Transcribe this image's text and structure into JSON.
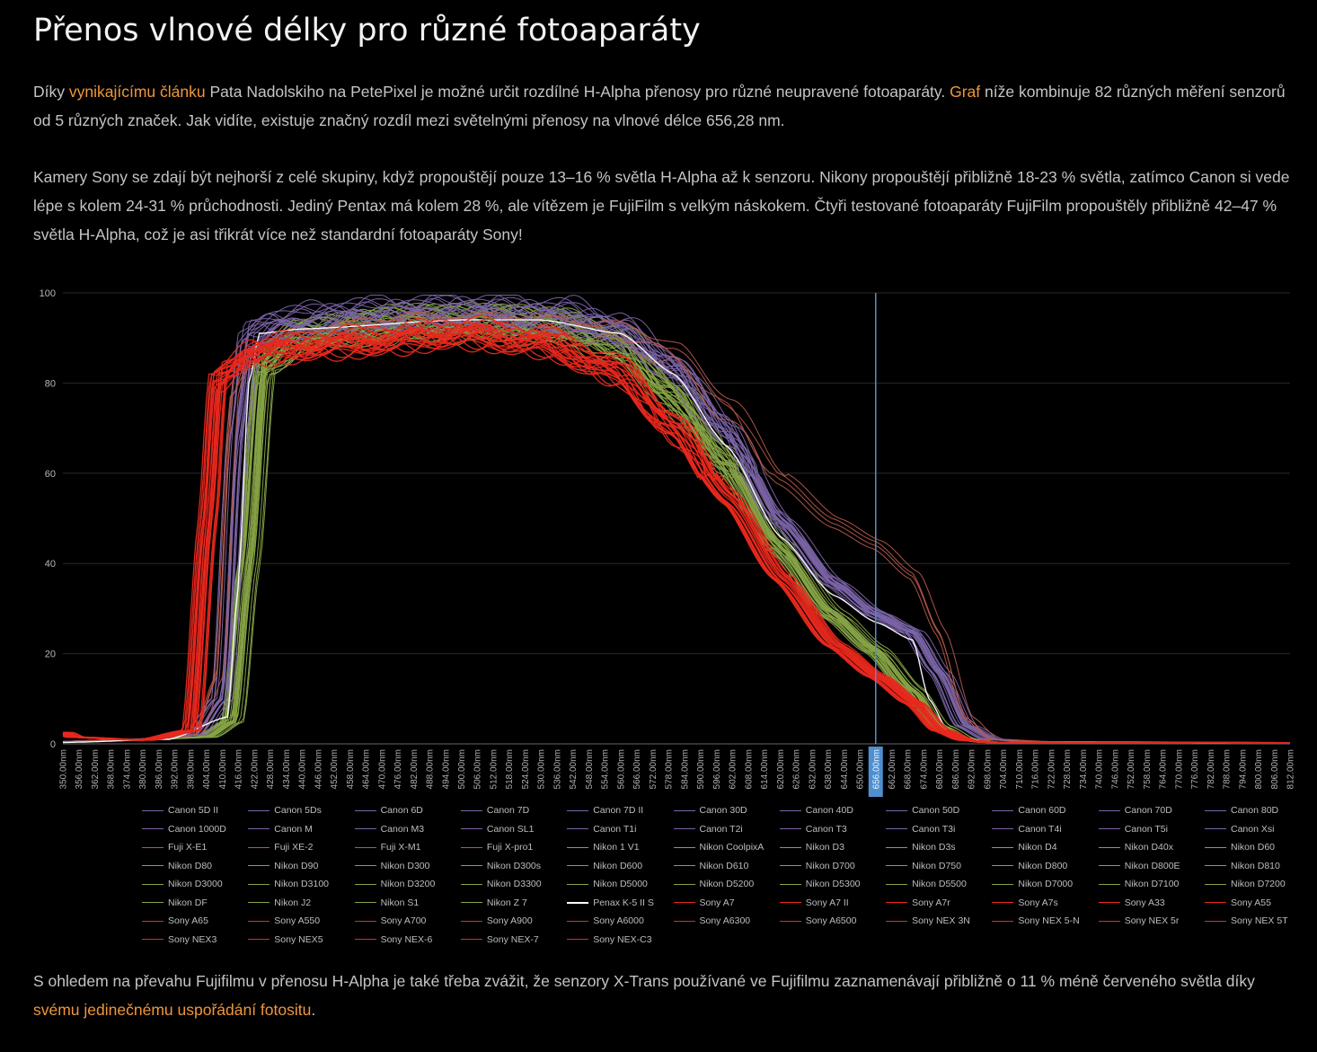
{
  "page": {
    "title": "Přenos vlnové délky pro různé fotoaparáty",
    "p1": {
      "t1": "Díky ",
      "link1": "vynikajícímu článku",
      "t2": " Pata Nadolskiho na PetePixel je možné určit rozdílné H-Alpha přenosy pro různé neupravené fotoaparáty. ",
      "link2": "Graf",
      "t3": " níže kombinuje 82 různých měření senzorů od 5 různých značek. Jak vidíte, existuje značný rozdíl mezi světelnými přenosy na vlnové délce 656,28 nm."
    },
    "p2": "Kamery Sony se zdají být nejhorší z celé skupiny, když propouštějí pouze 13–16 % světla H-Alpha až k senzoru. Nikony propouštějí přibližně 18-23 % světla, zatímco Canon si vede lépe s kolem 24-31 % průchodnosti. Jediný Pentax má kolem 28 %, ale vítězem je FujiFilm s velkým náskokem. Čtyři testované fotoaparáty FujiFilm propouštěly přibližně 42–47 % světla H-Alpha, což je asi třikrát více než standardní fotoaparáty Sony!",
    "p3": {
      "t1": "S ohledem na převahu Fujifilmu v přenosu H-Alpha je také třeba zvážit, že senzory X-Trans používané ve Fujifilmu zaznamenávají přibližně o 11 % méně červeného světla díky ",
      "link": "svému jedinečnému uspořádání fotositu",
      "t2": "."
    }
  },
  "colors": {
    "canon": "#7b64a8",
    "fuji": "#b5574a",
    "nikon": "#86a346",
    "pentax": "#ffffff",
    "sony": "#e8281e",
    "highlight": "#4f8fcf",
    "grid": "#2a2a2a",
    "link": "#f0963a"
  },
  "chart_data": {
    "type": "line",
    "title": "",
    "xlabel": "",
    "ylabel": "",
    "ylim": [
      0,
      100
    ],
    "xlim": [
      350,
      812
    ],
    "yticks": [
      "0",
      "20",
      "40",
      "60",
      "80",
      "100"
    ],
    "x_tick_labels": [
      "350.00nm",
      "356.00nm",
      "362.00nm",
      "368.00nm",
      "374.00nm",
      "380.00nm",
      "386.00nm",
      "392.00nm",
      "398.00nm",
      "404.00nm",
      "410.00nm",
      "416.00nm",
      "422.00nm",
      "428.00nm",
      "434.00nm",
      "440.00nm",
      "446.00nm",
      "452.00nm",
      "458.00nm",
      "464.00nm",
      "470.00nm",
      "476.00nm",
      "482.00nm",
      "488.00nm",
      "494.00nm",
      "500.00nm",
      "506.00nm",
      "512.00nm",
      "518.00nm",
      "524.00nm",
      "530.00nm",
      "536.00nm",
      "542.00nm",
      "548.00nm",
      "554.00nm",
      "560.00nm",
      "566.00nm",
      "572.00nm",
      "578.00nm",
      "584.00nm",
      "590.00nm",
      "596.00nm",
      "602.00nm",
      "608.00nm",
      "614.00nm",
      "620.00nm",
      "626.00nm",
      "632.00nm",
      "638.00nm",
      "644.00nm",
      "650.00nm",
      "656.00nm",
      "662.00nm",
      "668.00nm",
      "674.00nm",
      "680.00nm",
      "686.00nm",
      "692.00nm",
      "698.00nm",
      "704.00nm",
      "710.00nm",
      "716.00nm",
      "722.00nm",
      "728.00nm",
      "734.00nm",
      "740.00nm",
      "746.00nm",
      "752.00nm",
      "758.00nm",
      "764.00nm",
      "770.00nm",
      "776.00nm",
      "782.00nm",
      "788.00nm",
      "794.00nm",
      "800.00nm",
      "806.00nm",
      "812.00nm"
    ],
    "highlight_x": 656,
    "highlight_label": "656.00nm",
    "grid": true,
    "legend_position": "bottom",
    "group_profiles": {
      "canon": {
        "x": [
          350,
          380,
          400,
          410,
          416,
          420,
          430,
          460,
          500,
          540,
          560,
          580,
          600,
          620,
          640,
          656,
          670,
          680,
          690,
          700,
          720,
          812
        ],
        "y": [
          0.5,
          1,
          2,
          10,
          70,
          90,
          93,
          95,
          96,
          95,
          92,
          84,
          70,
          50,
          36,
          29,
          25,
          16,
          4,
          1,
          0.3,
          0.2
        ]
      },
      "nikon": {
        "x": [
          350,
          380,
          404,
          414,
          420,
          426,
          440,
          480,
          520,
          540,
          560,
          580,
          600,
          620,
          640,
          656,
          670,
          680,
          690,
          700,
          812
        ],
        "y": [
          0.5,
          1,
          1.5,
          5,
          40,
          85,
          91,
          94,
          94,
          93,
          89,
          78,
          63,
          44,
          29,
          21,
          12,
          4,
          1,
          0.3,
          0.2
        ]
      },
      "fuji": {
        "x": [
          350,
          380,
          400,
          408,
          414,
          420,
          440,
          480,
          520,
          560,
          580,
          600,
          620,
          640,
          656,
          670,
          680,
          690,
          700,
          720,
          812
        ],
        "y": [
          0.5,
          1,
          2,
          15,
          80,
          88,
          92,
          95,
          95,
          93,
          88,
          76,
          60,
          50,
          45,
          38,
          25,
          6,
          1,
          0.5,
          0.3
        ]
      },
      "sony": {
        "x": [
          350,
          354,
          380,
          398,
          404,
          408,
          420,
          460,
          500,
          530,
          560,
          580,
          600,
          620,
          640,
          656,
          670,
          680,
          690,
          700,
          812
        ],
        "y": [
          2.5,
          1.5,
          0.8,
          3,
          50,
          82,
          88,
          90,
          92,
          90,
          83,
          70,
          55,
          37,
          22,
          15,
          9,
          3,
          0.8,
          0.3,
          0.2
        ]
      },
      "pentax": {
        "x": [
          350,
          390,
          412,
          416,
          420,
          424,
          440,
          500,
          530,
          560,
          580,
          600,
          620,
          640,
          656,
          670,
          676,
          684,
          700,
          812
        ],
        "y": [
          0.3,
          1,
          6,
          35,
          80,
          91,
          92,
          94,
          94,
          91,
          82,
          66,
          46,
          33,
          27,
          23,
          10,
          2,
          0.3,
          0.2
        ]
      }
    },
    "series": [
      {
        "name": "Canon 5D II",
        "group": "canon"
      },
      {
        "name": "Canon 5Ds",
        "group": "canon"
      },
      {
        "name": "Canon 6D",
        "group": "canon"
      },
      {
        "name": "Canon 7D",
        "group": "canon"
      },
      {
        "name": "Canon 7D II",
        "group": "canon"
      },
      {
        "name": "Canon 30D",
        "group": "canon"
      },
      {
        "name": "Canon 40D",
        "group": "canon"
      },
      {
        "name": "Canon 50D",
        "group": "canon"
      },
      {
        "name": "Canon 60D",
        "group": "canon"
      },
      {
        "name": "Canon 70D",
        "group": "canon"
      },
      {
        "name": "Canon 80D",
        "group": "canon"
      },
      {
        "name": "Canon 1000D",
        "group": "canon"
      },
      {
        "name": "Canon M",
        "group": "canon"
      },
      {
        "name": "Canon M3",
        "group": "canon"
      },
      {
        "name": "Canon SL1",
        "group": "canon"
      },
      {
        "name": "Canon T1i",
        "group": "canon"
      },
      {
        "name": "Canon T2i",
        "group": "canon"
      },
      {
        "name": "Canon T3",
        "group": "canon"
      },
      {
        "name": "Canon T3i",
        "group": "canon"
      },
      {
        "name": "Canon T4i",
        "group": "canon"
      },
      {
        "name": "Canon T5i",
        "group": "canon"
      },
      {
        "name": "Canon Xsi",
        "group": "canon"
      },
      {
        "name": "Fuji X-E1",
        "group": "fuji"
      },
      {
        "name": "Fuji XE-2",
        "group": "fuji"
      },
      {
        "name": "Fuji X-M1",
        "group": "fuji"
      },
      {
        "name": "Fuji X-pro1",
        "group": "fuji"
      },
      {
        "name": "Nikon 1 V1",
        "group": "nikon"
      },
      {
        "name": "Nikon CoolpixA",
        "group": "nikon"
      },
      {
        "name": "Nikon D3",
        "group": "nikon"
      },
      {
        "name": "Nikon D3s",
        "group": "nikon"
      },
      {
        "name": "Nikon D4",
        "group": "nikon"
      },
      {
        "name": "Nikon D40x",
        "group": "nikon"
      },
      {
        "name": "Nikon D60",
        "group": "nikon"
      },
      {
        "name": "Nikon D80",
        "group": "nikon"
      },
      {
        "name": "Nikon D90",
        "group": "nikon"
      },
      {
        "name": "Nikon D300",
        "group": "nikon"
      },
      {
        "name": "Nikon D300s",
        "group": "nikon"
      },
      {
        "name": "Nikon D600",
        "group": "nikon"
      },
      {
        "name": "Nikon D610",
        "group": "nikon"
      },
      {
        "name": "Nikon D700",
        "group": "nikon"
      },
      {
        "name": "Nikon D750",
        "group": "nikon"
      },
      {
        "name": "Nikon D800",
        "group": "nikon"
      },
      {
        "name": "Nikon D800E",
        "group": "nikon"
      },
      {
        "name": "Nikon D810",
        "group": "nikon"
      },
      {
        "name": "Nikon D3000",
        "group": "nikon"
      },
      {
        "name": "Nikon D3100",
        "group": "nikon"
      },
      {
        "name": "Nikon D3200",
        "group": "nikon"
      },
      {
        "name": "Nikon D3300",
        "group": "nikon"
      },
      {
        "name": "Nikon D5000",
        "group": "nikon"
      },
      {
        "name": "Nikon D5200",
        "group": "nikon"
      },
      {
        "name": "Nikon D5300",
        "group": "nikon"
      },
      {
        "name": "Nikon D5500",
        "group": "nikon"
      },
      {
        "name": "Nikon D7000",
        "group": "nikon"
      },
      {
        "name": "Nikon D7100",
        "group": "nikon"
      },
      {
        "name": "Nikon D7200",
        "group": "nikon"
      },
      {
        "name": "Nikon DF",
        "group": "nikon"
      },
      {
        "name": "Nikon J2",
        "group": "nikon"
      },
      {
        "name": "Nikon S1",
        "group": "nikon"
      },
      {
        "name": "Nikon Z 7",
        "group": "nikon"
      },
      {
        "name": "Penax K-5 II S",
        "group": "pentax"
      },
      {
        "name": "Sony A7",
        "group": "sony"
      },
      {
        "name": "Sony A7 II",
        "group": "sony"
      },
      {
        "name": "Sony A7r",
        "group": "sony"
      },
      {
        "name": "Sony A7s",
        "group": "sony"
      },
      {
        "name": "Sony A33",
        "group": "sony"
      },
      {
        "name": "Sony A55",
        "group": "sony"
      },
      {
        "name": "Sony A65",
        "group": "sony"
      },
      {
        "name": "Sony A550",
        "group": "sony"
      },
      {
        "name": "Sony A700",
        "group": "sony"
      },
      {
        "name": "Sony A900",
        "group": "sony"
      },
      {
        "name": "Sony A6000",
        "group": "sony"
      },
      {
        "name": "Sony A6300",
        "group": "sony"
      },
      {
        "name": "Sony A6500",
        "group": "sony"
      },
      {
        "name": "Sony NEX 3N",
        "group": "sony"
      },
      {
        "name": "Sony NEX 5-N",
        "group": "sony"
      },
      {
        "name": "Sony NEX 5r",
        "group": "sony"
      },
      {
        "name": "Sony NEX 5T",
        "group": "sony"
      },
      {
        "name": "Sony NEX3",
        "group": "sony"
      },
      {
        "name": "Sony NEX5",
        "group": "sony"
      },
      {
        "name": "Sony NEX-6",
        "group": "sony"
      },
      {
        "name": "Sony NEX-7",
        "group": "sony"
      },
      {
        "name": "Sony NEX-C3",
        "group": "sony"
      }
    ]
  }
}
